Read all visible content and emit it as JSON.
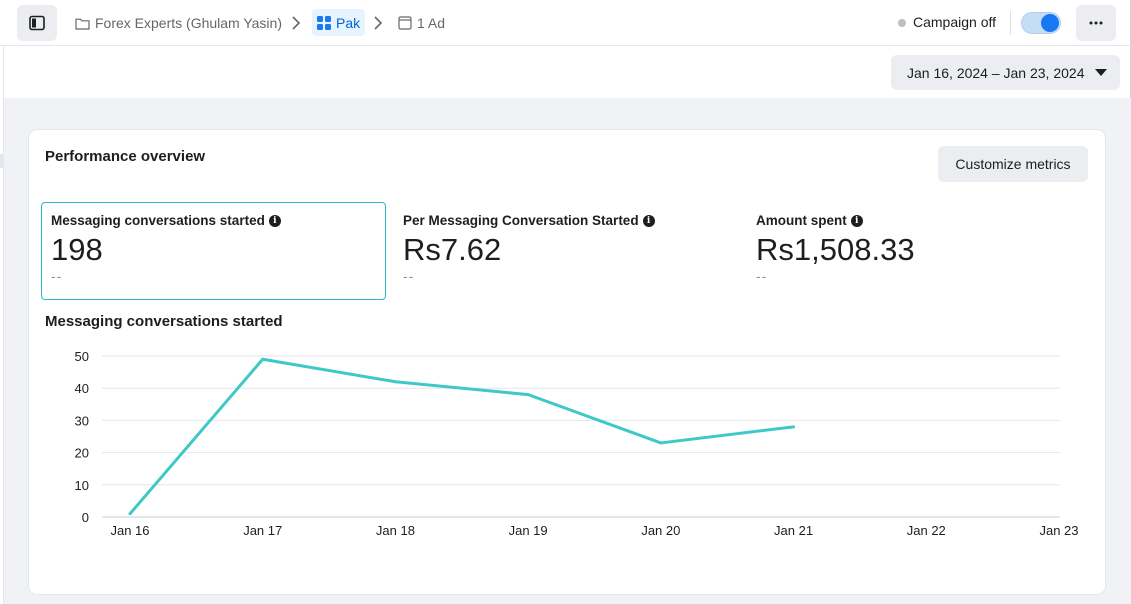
{
  "breadcrumb": {
    "account": "Forex Experts (Ghulam Yasin)",
    "campaign": "Pak",
    "ad": "1 Ad"
  },
  "campaign_status": {
    "text": "Campaign off",
    "toggle_on": true
  },
  "date_range": {
    "label": "Jan 16, 2024 – Jan 23, 2024"
  },
  "overview": {
    "title": "Performance overview",
    "customize_label": "Customize metrics",
    "metrics": [
      {
        "label": "Messaging conversations started",
        "value": "198",
        "compare": "--"
      },
      {
        "label": "Per Messaging Conversation Started",
        "value": "Rs7.62",
        "compare": "--"
      },
      {
        "label": "Amount spent",
        "value": "Rs1,508.33",
        "compare": "--"
      }
    ],
    "info_glyph": "i"
  },
  "chart_title": "Messaging conversations started",
  "colors": {
    "line": "#3ec9c6",
    "accent": "#1877f2",
    "selected_border": "#2cb9c5"
  },
  "chart_data": {
    "type": "line",
    "title": "Messaging conversations started",
    "categories": [
      "Jan 16",
      "Jan 17",
      "Jan 18",
      "Jan 19",
      "Jan 20",
      "Jan 21",
      "Jan 22",
      "Jan 23"
    ],
    "series": [
      {
        "values": [
          1,
          49,
          42,
          38,
          23,
          28,
          null,
          null
        ]
      }
    ],
    "yticks": [
      0,
      10,
      20,
      30,
      40,
      50
    ],
    "ylim": [
      0,
      50
    ],
    "grid": true,
    "legend": "none"
  }
}
